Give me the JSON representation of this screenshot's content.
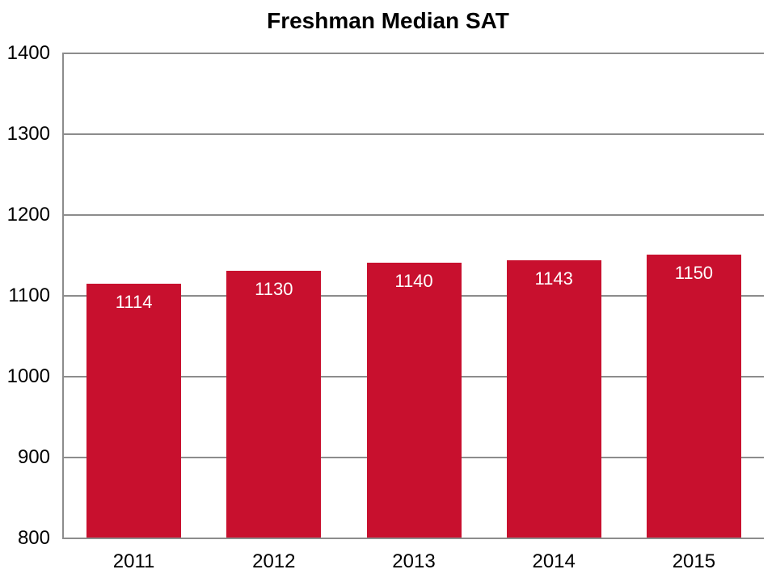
{
  "chart_data": {
    "type": "bar",
    "title": "Freshman Median SAT",
    "categories": [
      "2011",
      "2012",
      "2013",
      "2014",
      "2015"
    ],
    "values": [
      1114,
      1130,
      1140,
      1143,
      1150
    ],
    "data_labels": [
      1114,
      1130,
      1140,
      1143,
      1150
    ],
    "data_label_position": "inside-end",
    "xlabel": "",
    "ylabel": "",
    "ylim": [
      800,
      1400
    ],
    "yticks": [
      800,
      900,
      1000,
      1100,
      1200,
      1300,
      1400
    ],
    "grid": "horizontal-major",
    "legend": "none",
    "colors": {
      "bar_fill": "#C8102E",
      "data_label_text": "#FFFFFF",
      "gridline": "#8C8C8C",
      "axis_line": "#8C8C8C",
      "tick_label_text": "#000000",
      "title_text": "#000000",
      "background": "#FFFFFF"
    }
  }
}
